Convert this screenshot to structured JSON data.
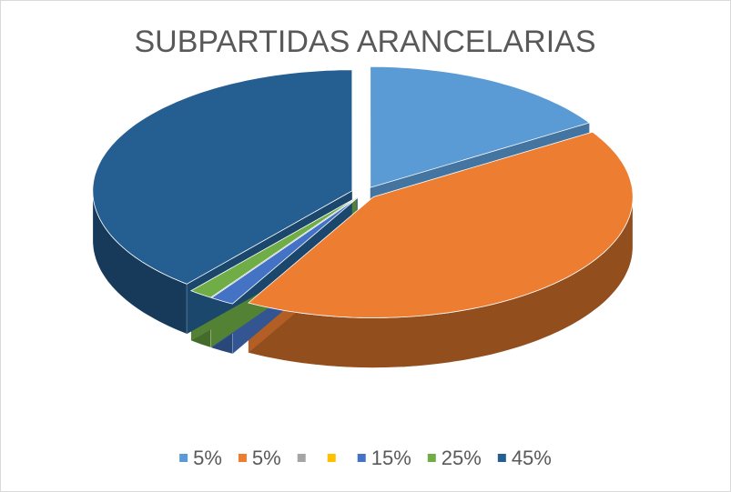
{
  "chart_data": {
    "type": "pie3d",
    "title": "SUBPARTIDAS ARANCELARIAS",
    "categories": [
      "5%",
      "5%",
      null,
      null,
      "15%",
      "25%",
      "45%"
    ],
    "values": [
      16,
      42,
      0,
      0,
      1.5,
      1.5,
      39
    ],
    "colors": [
      "#5b9bd5",
      "#ed7d31",
      "#a5a5a5",
      "#ffc000",
      "#4472c4",
      "#70ad47",
      "#255e91"
    ],
    "legend": "bottom"
  }
}
